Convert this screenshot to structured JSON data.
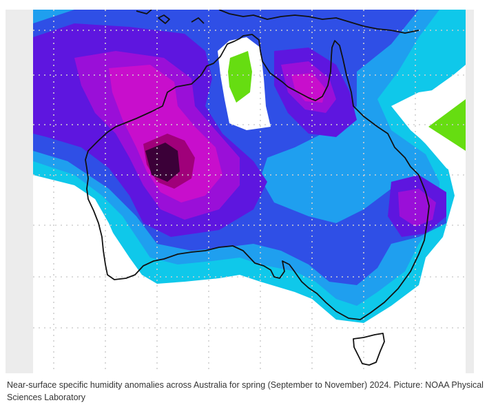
{
  "figure": {
    "caption": "Near-surface specific humidity anomalies across Australia for spring (September to November) 2024. Picture: NOAA Physical Sciences Laboratory"
  },
  "map": {
    "region": "Australia",
    "colors": {
      "background": "#ffffff",
      "frame": "#ececec",
      "green": "#66dd11",
      "cyan": "#0fc8ea",
      "light_blue": "#1f9fef",
      "blue": "#2f4fe6",
      "violet": "#5e16df",
      "purple": "#9a0fd8",
      "magenta": "#c80ecc",
      "deep_magenta": "#a0007a",
      "dark": "#3b0038",
      "coastline": "#111111",
      "grid": "#cfcfcf"
    }
  }
}
